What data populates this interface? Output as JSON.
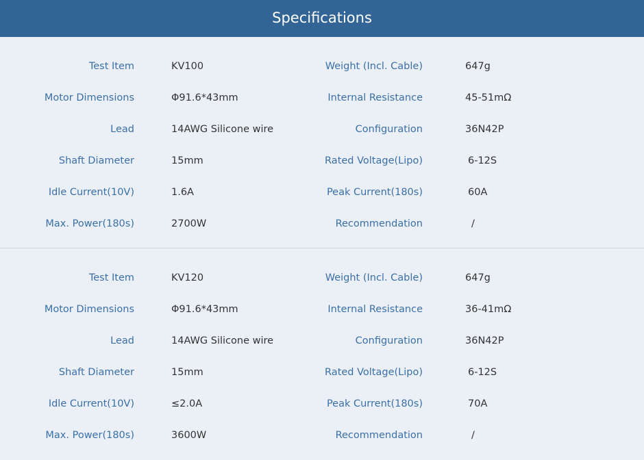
{
  "header": {
    "title": "Specifications"
  },
  "blocks": [
    {
      "rows": [
        {
          "l1": "Test Item",
          "v1": "KV100",
          "l2": "Weight (Incl. Cable)",
          "v2": "647g"
        },
        {
          "l1": "Motor Dimensions",
          "v1": "Φ91.6*43mm",
          "l2": "Internal Resistance",
          "v2": "45-51mΩ"
        },
        {
          "l1": "Lead",
          "v1": "14AWG Silicone wire",
          "l2": "Configuration",
          "v2": "36N42P"
        },
        {
          "l1": "Shaft Diameter",
          "v1": "15mm",
          "l2": "Rated Voltage(Lipo)",
          "v2": "6-12S"
        },
        {
          "l1": "Idle Current(10V)",
          "v1": "1.6A",
          "l2": "Peak Current(180s)",
          "v2": "60A"
        },
        {
          "l1": "Max. Power(180s)",
          "v1": "2700W",
          "l2": "Recommendation",
          "v2": "/"
        }
      ]
    },
    {
      "rows": [
        {
          "l1": "Test Item",
          "v1": "KV120",
          "l2": "Weight (Incl. Cable)",
          "v2": "647g"
        },
        {
          "l1": "Motor Dimensions",
          "v1": "Φ91.6*43mm",
          "l2": "Internal Resistance",
          "v2": "36-41mΩ"
        },
        {
          "l1": "Lead",
          "v1": "14AWG Silicone wire",
          "l2": "Configuration",
          "v2": "36N42P"
        },
        {
          "l1": "Shaft Diameter",
          "v1": "15mm",
          "l2": "Rated Voltage(Lipo)",
          "v2": "6-12S"
        },
        {
          "l1": "Idle Current(10V)",
          "v1": "≤2.0A",
          "l2": "Peak Current(180s)",
          "v2": "70A"
        },
        {
          "l1": "Max. Power(180s)",
          "v1": "3600W",
          "l2": "Recommendation",
          "v2": "/"
        }
      ]
    }
  ]
}
